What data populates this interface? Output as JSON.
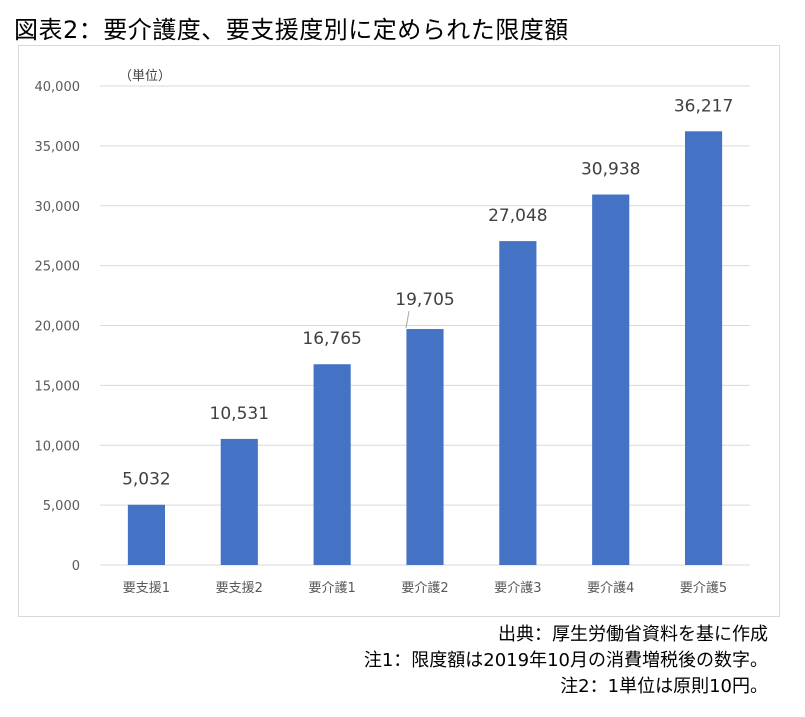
{
  "page_title": "図表2：要介護度、要支援度別に定められた限度額",
  "notes": [
    "出典：厚生労働省資料を基に作成",
    "注1：限度額は2019年10月の消費増税後の数字。",
    "注2：1単位は原則10円。"
  ],
  "colors": {
    "bar": "#4472C4",
    "grid": "#d9d9d9",
    "axis_text": "#595959",
    "label_text": "#404040"
  },
  "chart_data": {
    "type": "bar",
    "title": "",
    "unit_label": "（単位）",
    "xlabel": "",
    "ylabel": "",
    "categories": [
      "要支援1",
      "要支援2",
      "要介護1",
      "要介護2",
      "要介護3",
      "要介護4",
      "要介護5"
    ],
    "values": [
      5032,
      10531,
      16765,
      19705,
      27048,
      30938,
      36217
    ],
    "value_labels": [
      "5,032",
      "10,531",
      "16,765",
      "19,705",
      "27,048",
      "30,938",
      "36,217"
    ],
    "ylim": [
      0,
      40000
    ],
    "yticks": [
      0,
      5000,
      10000,
      15000,
      20000,
      25000,
      30000,
      35000,
      40000
    ],
    "ytick_labels": [
      "0",
      "5,000",
      "10,000",
      "15,000",
      "20,000",
      "25,000",
      "30,000",
      "35,000",
      "40,000"
    ],
    "grid": true,
    "legend": false
  }
}
